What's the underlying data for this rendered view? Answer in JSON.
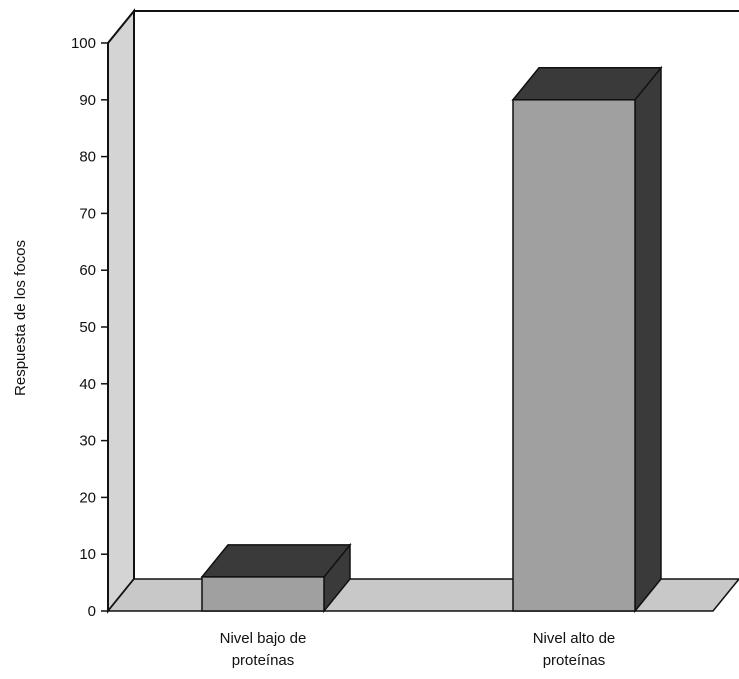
{
  "chart_data": {
    "type": "bar",
    "style": "3d",
    "ylabel": "Respuesta de los focos",
    "ylim": [
      0,
      100
    ],
    "yticks": [
      0,
      10,
      20,
      30,
      40,
      50,
      60,
      70,
      80,
      90,
      100
    ],
    "categories": [
      [
        "Nivel bajo de",
        "proteínas"
      ],
      [
        "Nivel alto de",
        "proteínas"
      ]
    ],
    "values": [
      6,
      90
    ],
    "grid": false,
    "colors": {
      "bar_front": "#a0a0a0",
      "bar_top": "#3a3a3a",
      "bar_side": "#3a3a3a",
      "floor": "#c8c8c8",
      "left_wall": "#d4d4d4",
      "back_wall": "#ffffff",
      "outline": "#111111"
    }
  }
}
